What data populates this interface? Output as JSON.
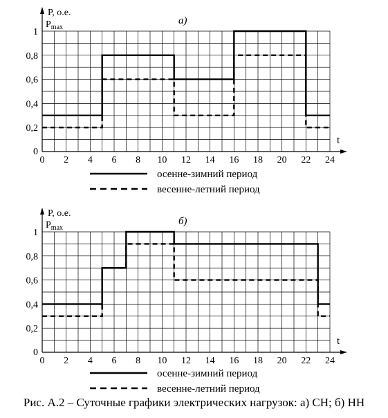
{
  "chart_data": [
    {
      "type": "line",
      "panel_label": "а)",
      "y_label_top": "P, о.е.",
      "y_label_bottom": "P",
      "y_label_bottom_sub": "max",
      "x_label": "t",
      "xlim": [
        0,
        24
      ],
      "ylim": [
        0,
        1
      ],
      "x_ticks": [
        "0",
        "2",
        "4",
        "6",
        "8",
        "10",
        "12",
        "14",
        "16",
        "18",
        "20",
        "22",
        "24"
      ],
      "y_ticks": [
        "0",
        "0,2",
        "0,4",
        "0,6",
        "0,8",
        "1"
      ],
      "grid": true,
      "series": [
        {
          "name": "осенне-зимний период",
          "style": "solid",
          "points": [
            [
              0,
              0.3
            ],
            [
              5,
              0.3
            ],
            [
              5,
              0.8
            ],
            [
              11,
              0.8
            ],
            [
              11,
              0.6
            ],
            [
              16,
              0.6
            ],
            [
              16,
              1.0
            ],
            [
              22,
              1.0
            ],
            [
              22,
              0.3
            ],
            [
              24,
              0.3
            ]
          ]
        },
        {
          "name": "весенне-летний период",
          "style": "dashed",
          "points": [
            [
              0,
              0.2
            ],
            [
              5,
              0.2
            ],
            [
              5,
              0.6
            ],
            [
              11,
              0.6
            ],
            [
              11,
              0.3
            ],
            [
              16,
              0.3
            ],
            [
              16,
              0.8
            ],
            [
              22,
              0.8
            ],
            [
              22,
              0.2
            ],
            [
              24,
              0.2
            ]
          ]
        }
      ]
    },
    {
      "type": "line",
      "panel_label": "б)",
      "y_label_top": "P, о.е.",
      "y_label_bottom": "P",
      "y_label_bottom_sub": "max",
      "x_label": "t",
      "xlim": [
        0,
        24
      ],
      "ylim": [
        0,
        1
      ],
      "x_ticks": [
        "0",
        "2",
        "4",
        "6",
        "8",
        "10",
        "12",
        "14",
        "16",
        "18",
        "20",
        "22",
        "24"
      ],
      "y_ticks": [
        "0",
        "0,2",
        "0,4",
        "0,6",
        "0,8",
        "1"
      ],
      "grid": true,
      "series": [
        {
          "name": "осенне-зимний период",
          "style": "solid",
          "points": [
            [
              0,
              0.4
            ],
            [
              5,
              0.4
            ],
            [
              5,
              0.7
            ],
            [
              7,
              0.7
            ],
            [
              7,
              1.0
            ],
            [
              11,
              1.0
            ],
            [
              11,
              0.9
            ],
            [
              23,
              0.9
            ],
            [
              23,
              0.4
            ],
            [
              24,
              0.4
            ]
          ]
        },
        {
          "name": "весенне-летний период",
          "style": "dashed",
          "points": [
            [
              0,
              0.3
            ],
            [
              5,
              0.3
            ],
            [
              5,
              0.7
            ],
            [
              7,
              0.7
            ],
            [
              7,
              0.9
            ],
            [
              11,
              0.9
            ],
            [
              11,
              0.6
            ],
            [
              23,
              0.6
            ],
            [
              23,
              0.3
            ],
            [
              24,
              0.3
            ]
          ]
        }
      ]
    }
  ],
  "caption": "Рис. А.2 – Суточные графики электрических нагрузок: а) СН; б) НН"
}
